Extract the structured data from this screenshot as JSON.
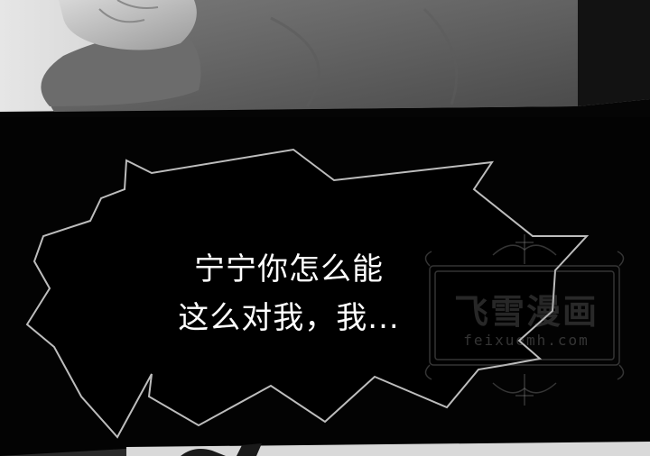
{
  "dialogue": {
    "line1": "宁宁你怎么能",
    "line2": "这么对我，我..."
  },
  "watermark": {
    "title": "飞雪漫画",
    "url": "feixuemh.com"
  },
  "colors": {
    "background": "#030303",
    "text": "#ffffff",
    "bubble_outline": "#bdbdbd"
  }
}
